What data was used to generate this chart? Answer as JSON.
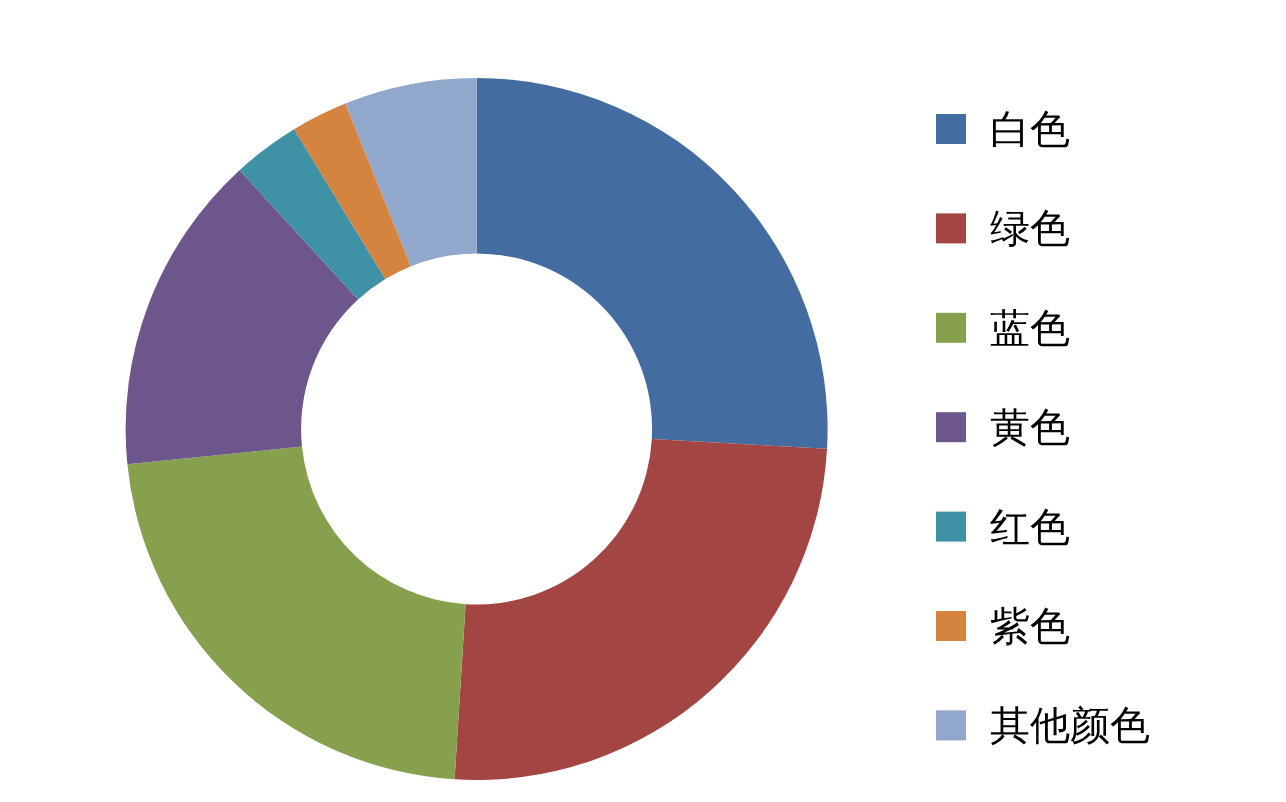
{
  "chart_data": {
    "type": "donut",
    "categories": [
      "白色",
      "绿色",
      "蓝色",
      "黄色",
      "红色",
      "紫色",
      "其他颜色"
    ],
    "values": [
      25.9,
      25.1,
      22.4,
      14.8,
      3.1,
      2.6,
      6.1
    ],
    "colors": [
      "#436ca0",
      "#a34643",
      "#87a04e",
      "#6d568b",
      "#3f91a6",
      "#d4843e",
      "#91a8cc"
    ],
    "legend": "right"
  }
}
